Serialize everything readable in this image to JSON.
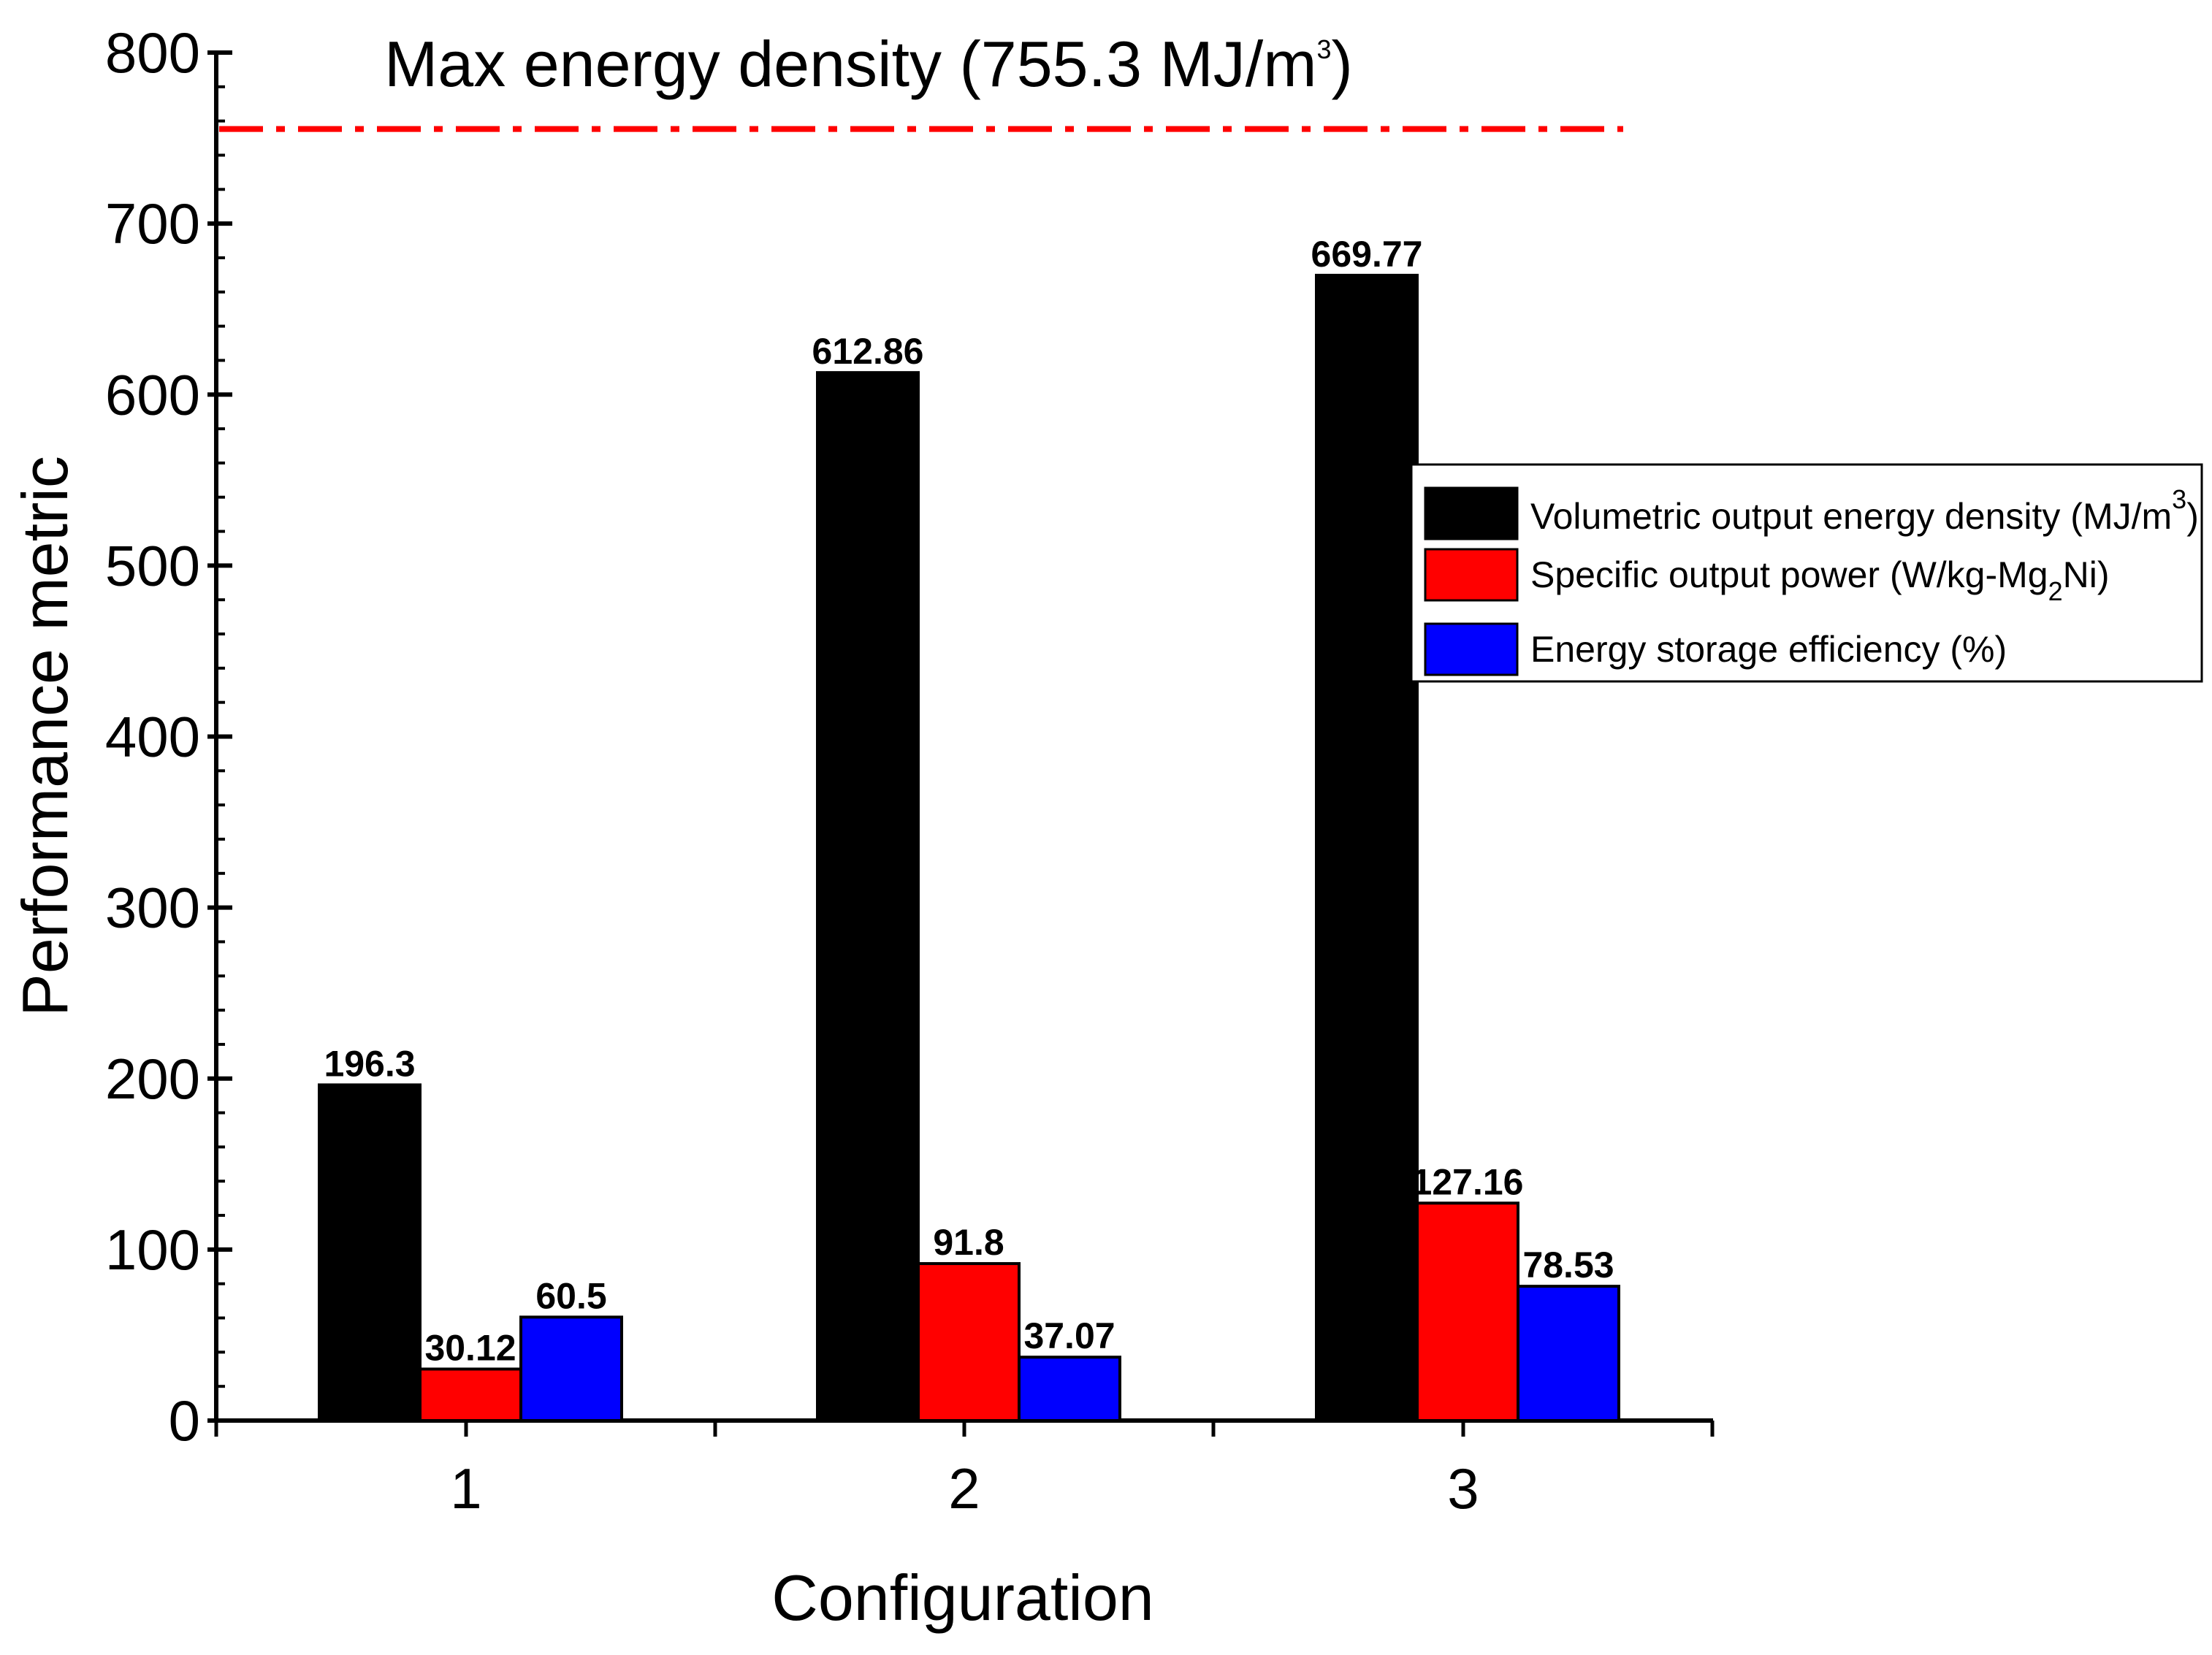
{
  "chart_data": {
    "type": "bar",
    "title": "",
    "xlabel": "Configuration",
    "ylabel": "Performance metric",
    "ylim": [
      0,
      800
    ],
    "yticks": [
      0,
      100,
      200,
      300,
      400,
      500,
      600,
      700,
      800
    ],
    "categories": [
      "1",
      "2",
      "3"
    ],
    "series": [
      {
        "name": "Volumetric output energy density (MJ/m",
        "name_sup": "3",
        "name_after": ")",
        "color": "#000000",
        "values": [
          196.3,
          612.86,
          669.77
        ],
        "labels": [
          "196.3",
          "612.86",
          "669.77"
        ]
      },
      {
        "name": "Specific output power (W/kg-Mg",
        "name_sub": "2",
        "name_after": "Ni)",
        "color": "#ff0000",
        "values": [
          30.12,
          91.8,
          127.16
        ],
        "labels": [
          "30.12",
          "91.8",
          "127.16"
        ]
      },
      {
        "name": "Energy storage efficiency (%)",
        "color": "#0000ff",
        "values": [
          60.5,
          37.07,
          78.53
        ],
        "labels": [
          "60.5",
          "37.07",
          "78.53"
        ]
      }
    ],
    "reference_line": {
      "value": 755.3,
      "label": "Max energy density (755.3 MJ/m",
      "label_sup": "3",
      "label_after": ")",
      "color": "#ff0000",
      "style": "dash-dot"
    },
    "legend_position": "right",
    "grid": false
  }
}
